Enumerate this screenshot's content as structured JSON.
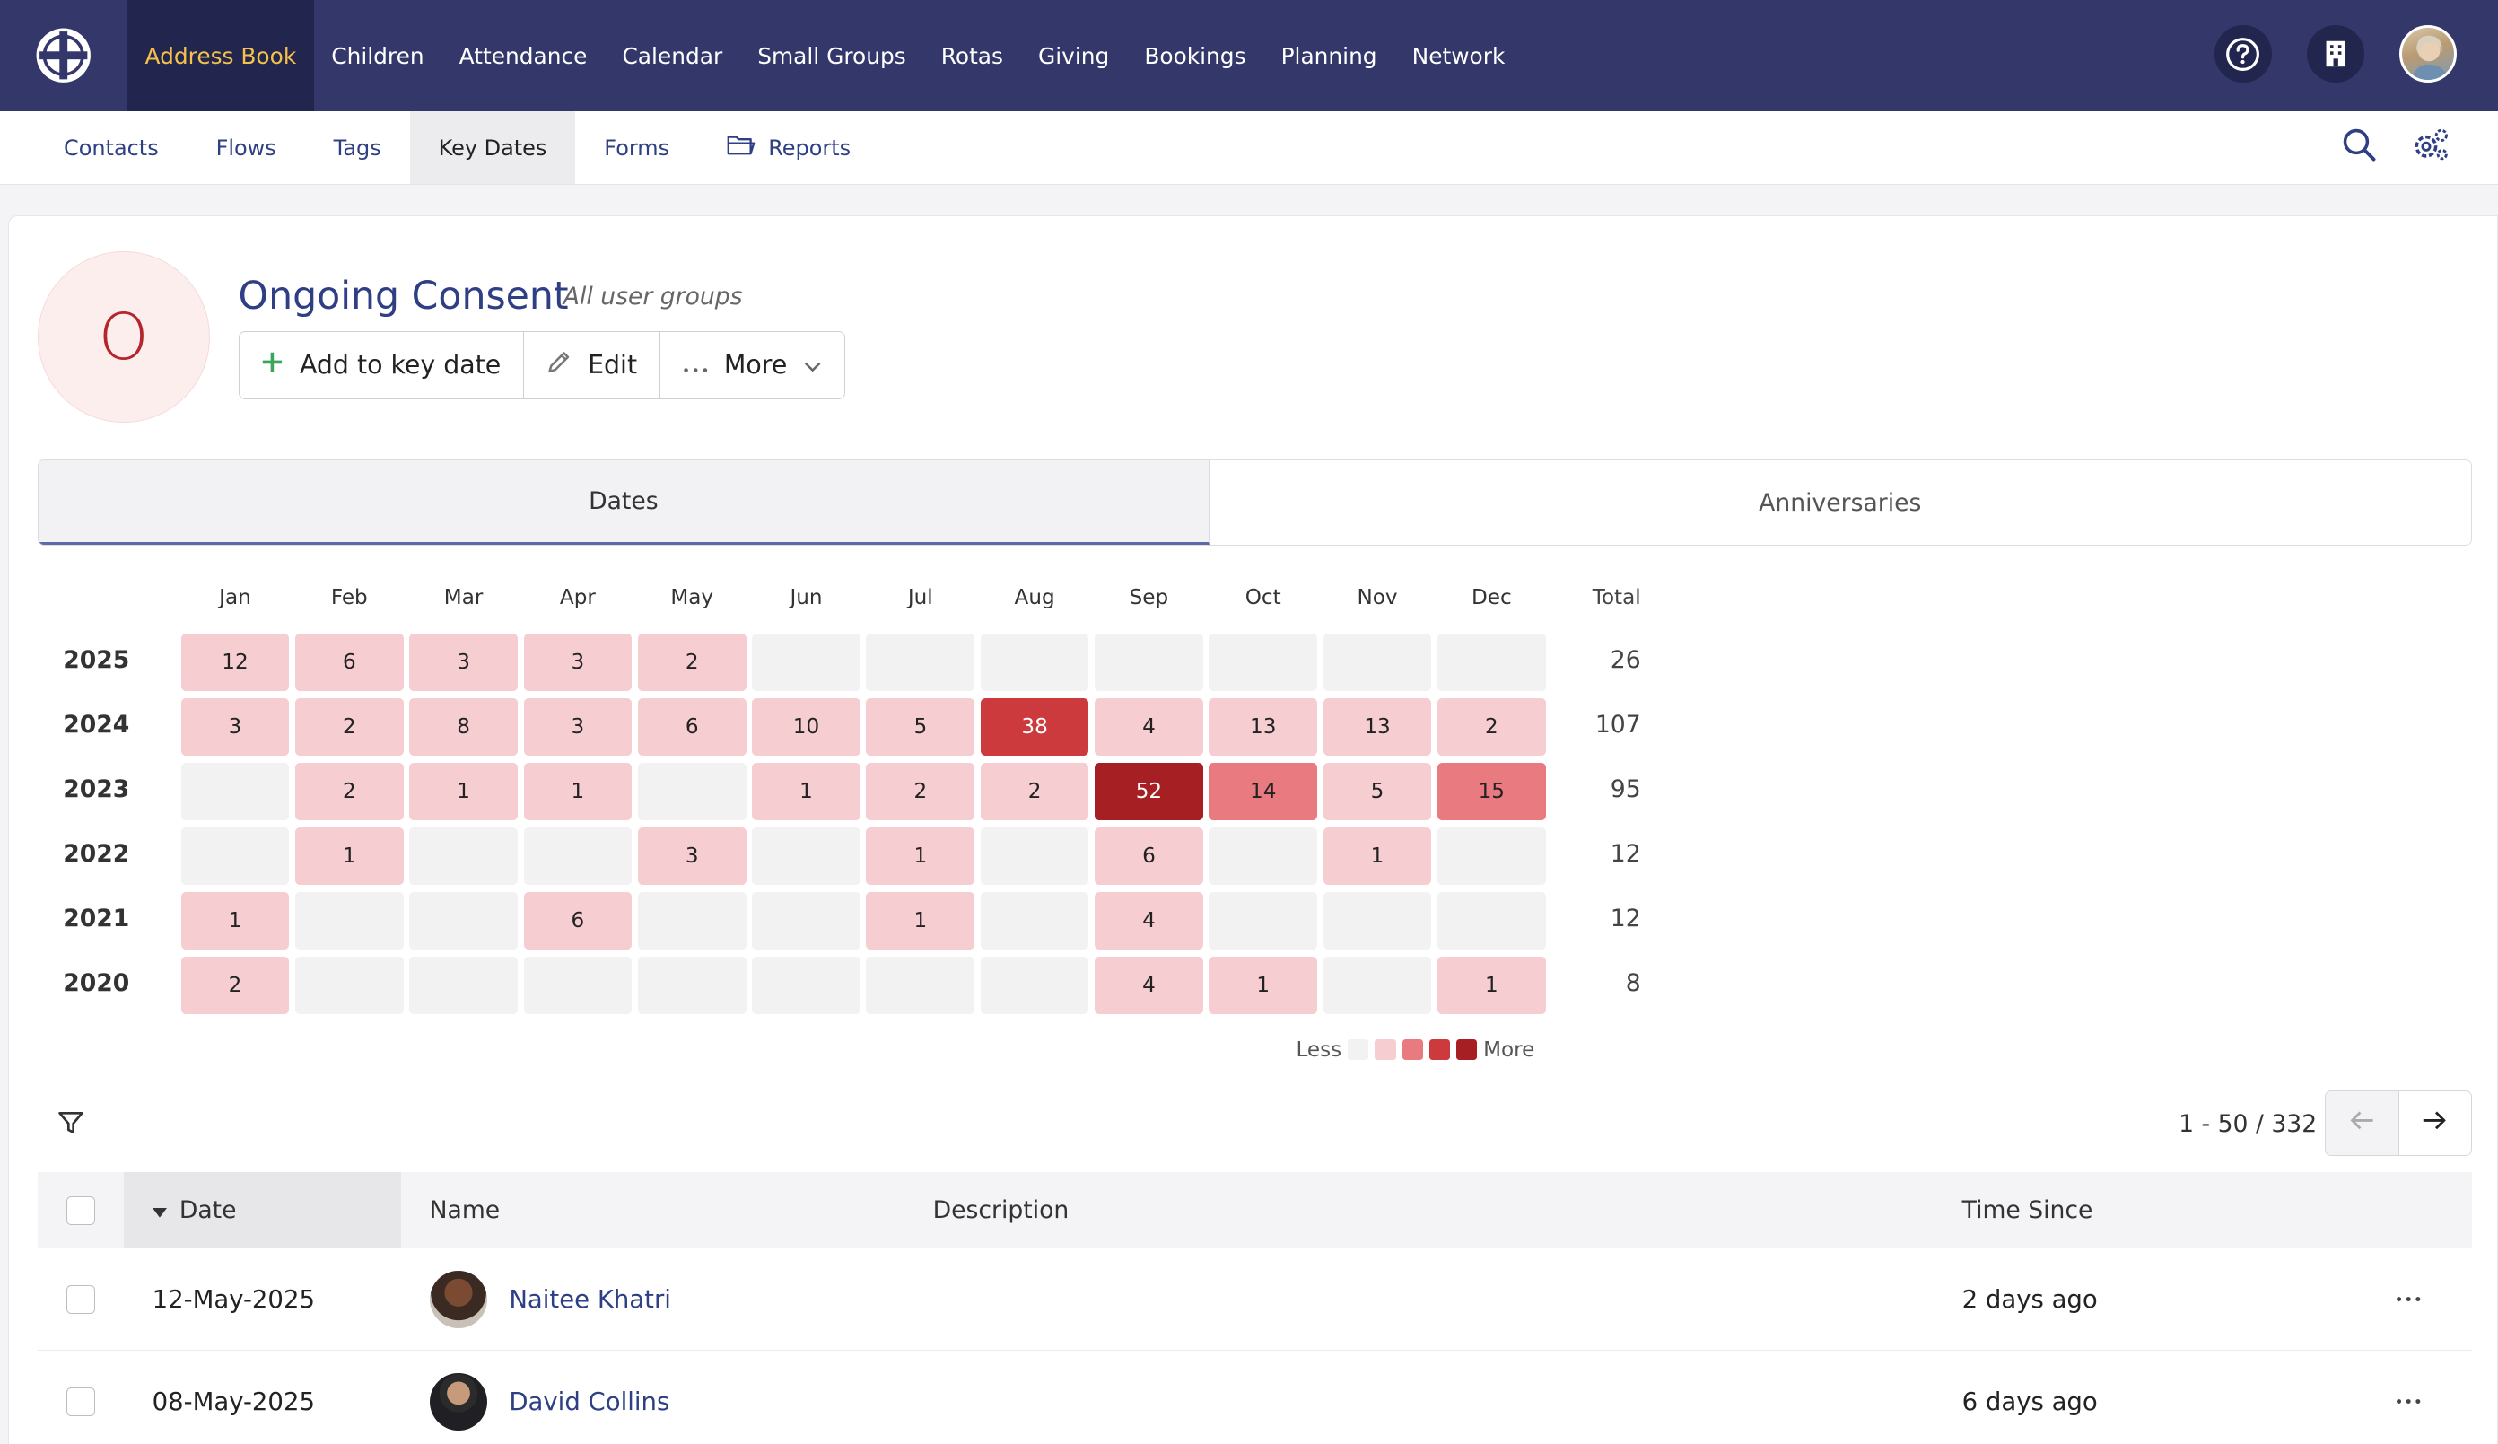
{
  "topnav": {
    "items": [
      {
        "label": "Address Book",
        "active": true
      },
      {
        "label": "Children"
      },
      {
        "label": "Attendance"
      },
      {
        "label": "Calendar"
      },
      {
        "label": "Small Groups"
      },
      {
        "label": "Rotas"
      },
      {
        "label": "Giving"
      },
      {
        "label": "Bookings"
      },
      {
        "label": "Planning"
      },
      {
        "label": "Network"
      }
    ],
    "right_icons": [
      "help-icon",
      "building-icon",
      "user-avatar"
    ]
  },
  "subnav": {
    "items": [
      {
        "label": "Contacts"
      },
      {
        "label": "Flows"
      },
      {
        "label": "Tags"
      },
      {
        "label": "Key Dates",
        "active": true
      },
      {
        "label": "Forms"
      },
      {
        "label": "Reports",
        "icon": "folder-icon"
      }
    ],
    "right_icons": [
      "search-icon",
      "settings-gear-icon"
    ]
  },
  "keydate": {
    "initial": "O",
    "title": "Ongoing Consent",
    "subtitle": "All user groups",
    "actions": {
      "add_label": "Add to key date",
      "edit_label": "Edit",
      "more_label": "More"
    }
  },
  "tabs": [
    {
      "label": "Dates",
      "active": true
    },
    {
      "label": "Anniversaries"
    }
  ],
  "heatmap": {
    "months": [
      "Jan",
      "Feb",
      "Mar",
      "Apr",
      "May",
      "Jun",
      "Jul",
      "Aug",
      "Sep",
      "Oct",
      "Nov",
      "Dec"
    ],
    "total_label": "Total",
    "rows": [
      {
        "year": "2025",
        "values": [
          12,
          6,
          3,
          3,
          2,
          null,
          null,
          null,
          null,
          null,
          null,
          null
        ],
        "total": "26"
      },
      {
        "year": "2024",
        "values": [
          3,
          2,
          8,
          3,
          6,
          10,
          5,
          38,
          4,
          13,
          13,
          2
        ],
        "total": "107"
      },
      {
        "year": "2023",
        "values": [
          null,
          2,
          1,
          1,
          null,
          1,
          2,
          2,
          52,
          14,
          5,
          15
        ],
        "total": "95"
      },
      {
        "year": "2022",
        "values": [
          null,
          1,
          null,
          null,
          3,
          null,
          1,
          null,
          6,
          null,
          1,
          null
        ],
        "total": "12"
      },
      {
        "year": "2021",
        "values": [
          1,
          null,
          null,
          6,
          null,
          null,
          1,
          null,
          4,
          null,
          null,
          null
        ],
        "total": "12"
      },
      {
        "year": "2020",
        "values": [
          2,
          null,
          null,
          null,
          null,
          null,
          null,
          null,
          4,
          1,
          null,
          1
        ],
        "total": "8"
      }
    ],
    "legend": {
      "less": "Less",
      "more": "More"
    },
    "colors": {
      "empty": "#f2f2f3",
      "light": "#f6cdd0",
      "medium": "#e97b80",
      "strong": "#cc3a3d",
      "darkest": "#a61f22"
    }
  },
  "list": {
    "pager_text": "1 - 50 / 332",
    "columns": {
      "date": "Date",
      "name": "Name",
      "description": "Description",
      "time_since": "Time Since"
    },
    "rows": [
      {
        "date": "12-May-2025",
        "name": "Naitee Khatri",
        "description": "",
        "time_since": "2 days ago"
      },
      {
        "date": "08-May-2025",
        "name": "David Collins",
        "description": "",
        "time_since": "6 days ago"
      }
    ]
  }
}
